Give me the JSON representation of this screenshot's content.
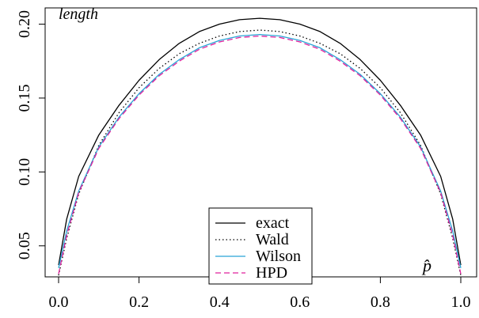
{
  "chart_data": {
    "type": "line",
    "ylabel": "length",
    "xlabel": "p̂",
    "xlim": [
      0,
      1
    ],
    "ylim": [
      0.029,
      0.211
    ],
    "x_ticks": [
      0.0,
      0.2,
      0.4,
      0.6,
      0.8,
      1.0
    ],
    "x_tick_labels": [
      "0.0",
      "0.2",
      "0.4",
      "0.6",
      "0.8",
      "1.0"
    ],
    "y_ticks": [
      0.05,
      0.1,
      0.15,
      0.2
    ],
    "y_tick_labels": [
      "0.05",
      "0.10",
      "0.15",
      "0.20"
    ],
    "grid": false,
    "legend_position": "bottom-center",
    "series": [
      {
        "name": "exact",
        "color": "#000000",
        "style": "solid",
        "x": [
          0.0,
          0.02,
          0.05,
          0.1,
          0.15,
          0.2,
          0.25,
          0.3,
          0.35,
          0.4,
          0.45,
          0.5,
          0.55,
          0.6,
          0.65,
          0.7,
          0.75,
          0.8,
          0.85,
          0.9,
          0.95,
          0.98,
          1.0
        ],
        "y": [
          0.037,
          0.068,
          0.097,
          0.125,
          0.145,
          0.162,
          0.176,
          0.187,
          0.195,
          0.2,
          0.203,
          0.204,
          0.203,
          0.2,
          0.195,
          0.187,
          0.176,
          0.162,
          0.145,
          0.125,
          0.097,
          0.068,
          0.037
        ]
      },
      {
        "name": "Wald",
        "color": "#000000",
        "style": "dotted",
        "x": [
          0.0,
          0.02,
          0.05,
          0.1,
          0.15,
          0.2,
          0.25,
          0.3,
          0.35,
          0.4,
          0.45,
          0.5,
          0.55,
          0.6,
          0.65,
          0.7,
          0.75,
          0.8,
          0.85,
          0.9,
          0.95,
          0.98,
          1.0
        ],
        "y": [
          0.03,
          0.055,
          0.085,
          0.118,
          0.14,
          0.157,
          0.17,
          0.18,
          0.187,
          0.192,
          0.195,
          0.196,
          0.195,
          0.192,
          0.187,
          0.18,
          0.17,
          0.157,
          0.14,
          0.118,
          0.085,
          0.055,
          0.03
        ]
      },
      {
        "name": "Wilson",
        "color": "#29a3d6",
        "style": "solid",
        "x": [
          0.0,
          0.02,
          0.05,
          0.1,
          0.15,
          0.2,
          0.25,
          0.3,
          0.35,
          0.4,
          0.45,
          0.5,
          0.55,
          0.6,
          0.65,
          0.7,
          0.75,
          0.8,
          0.85,
          0.9,
          0.95,
          0.98,
          1.0
        ],
        "y": [
          0.035,
          0.06,
          0.087,
          0.117,
          0.137,
          0.153,
          0.166,
          0.176,
          0.184,
          0.189,
          0.192,
          0.193,
          0.192,
          0.189,
          0.184,
          0.176,
          0.166,
          0.153,
          0.137,
          0.117,
          0.087,
          0.06,
          0.035
        ]
      },
      {
        "name": "HPD",
        "color": "#e0209c",
        "style": "dashed",
        "x": [
          0.0,
          0.02,
          0.05,
          0.1,
          0.15,
          0.2,
          0.25,
          0.3,
          0.35,
          0.4,
          0.45,
          0.5,
          0.55,
          0.6,
          0.65,
          0.7,
          0.75,
          0.8,
          0.85,
          0.9,
          0.95,
          0.98,
          1.0
        ],
        "y": [
          0.031,
          0.057,
          0.086,
          0.116,
          0.136,
          0.152,
          0.165,
          0.175,
          0.183,
          0.188,
          0.191,
          0.192,
          0.191,
          0.188,
          0.183,
          0.175,
          0.165,
          0.152,
          0.136,
          0.116,
          0.086,
          0.057,
          0.031
        ]
      }
    ]
  }
}
